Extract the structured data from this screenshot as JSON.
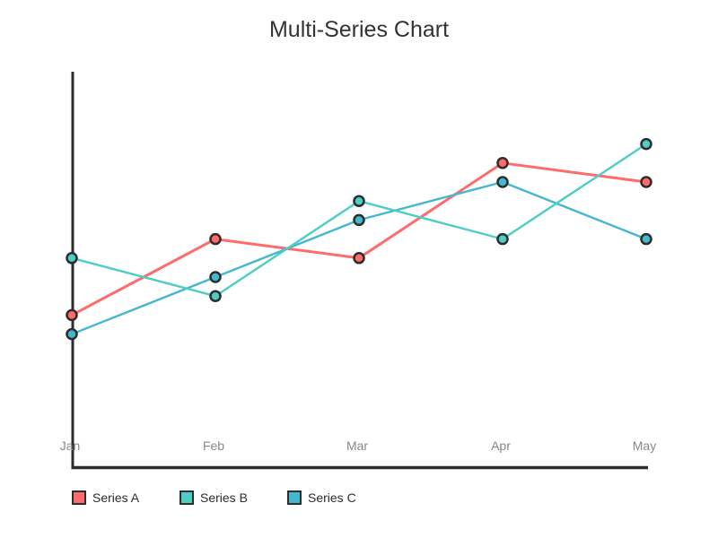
{
  "chart_data": {
    "type": "line",
    "title": "Multi-Series Chart",
    "categories": [
      "Jan",
      "Feb",
      "Mar",
      "Apr",
      "May"
    ],
    "series": [
      {
        "name": "Series A",
        "color": "#FF6B6B",
        "values": [
          8,
          12,
          11,
          16,
          15
        ]
      },
      {
        "name": "Series B",
        "color": "#4ECDC4",
        "values": [
          11,
          9,
          14,
          12,
          17
        ]
      },
      {
        "name": "Series C",
        "color": "#45B7D1",
        "values": [
          7,
          10,
          13,
          15,
          12
        ]
      }
    ],
    "xlabel": "",
    "ylabel": "",
    "ylim": [
      0,
      21
    ],
    "y_tick_labels_visible": false,
    "grid": false,
    "legend_position": "bottom-left",
    "axis_color": "#2d2d2d",
    "tick_label_color": "#888888",
    "marker_style": "circle-outlined"
  }
}
